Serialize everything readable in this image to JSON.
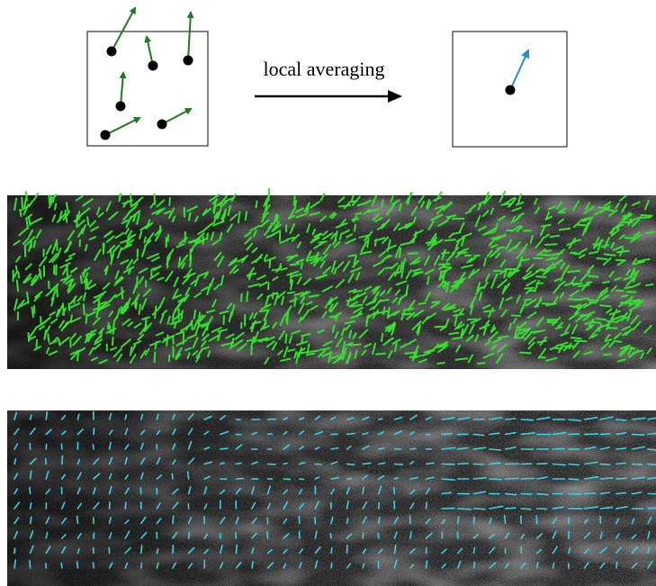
{
  "annotation": "local averaging"
}
